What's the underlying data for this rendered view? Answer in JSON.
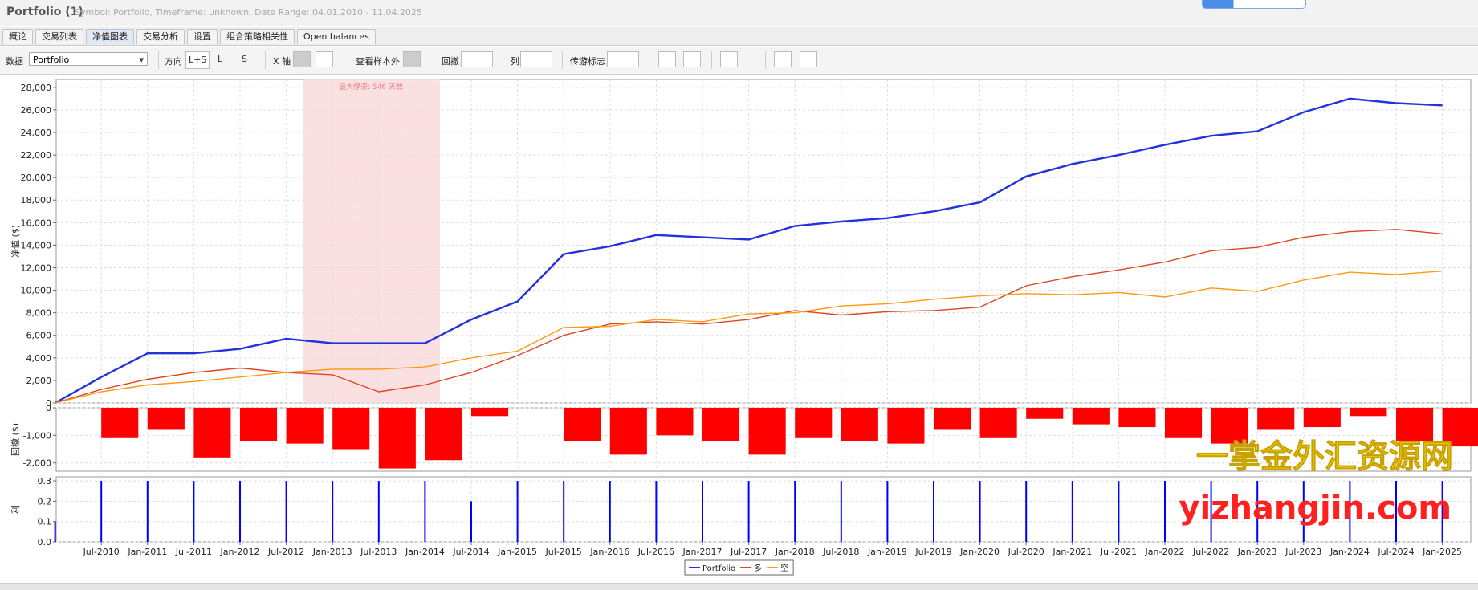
{
  "header": {
    "title": "Portfolio (1)",
    "subtitle": "Symbol: Portfolio, Timeframe: unknown, Date Range: 04.01.2010 - 11.04.2025"
  },
  "tabs": [
    "概论",
    "交易列表",
    "净值图表",
    "交易分析",
    "设置",
    "组合策略相关性",
    "Open balances"
  ],
  "active_tab": 2,
  "toolbar": {
    "data_label": "数据",
    "data_select": "Portfolio",
    "direction_label": "方向",
    "direction_options": [
      "L+S",
      "L",
      "S"
    ],
    "x_axis_label": "X 轴",
    "oos_label": "查看样本外",
    "drawdown_label": "回撤",
    "columns_label": "列",
    "cursor_label": "传游标志"
  },
  "watermark": [
    "一掌金外汇资源网",
    "yizhangjin.com"
  ],
  "chart_data": [
    {
      "type": "line",
      "y_label": "净值 ($)",
      "annotation": "最大停滞: 546 天数",
      "grid": true,
      "categories": [
        null,
        "Jul-2010",
        "Jan-2011",
        "Jul-2011",
        "Jan-2012",
        "Jul-2012",
        "Jan-2013",
        "Jul-2013",
        "Jan-2014",
        "Jul-2014",
        "Jan-2015",
        "Jul-2015",
        "Jan-2016",
        "Jul-2016",
        "Jan-2017",
        "Jul-2017",
        "Jan-2018",
        "Jul-2018",
        "Jan-2019",
        "Jul-2019",
        "Jan-2020",
        "Jul-2020",
        "Jan-2021",
        "Jul-2021",
        "Jan-2022",
        "Jul-2022",
        "Jan-2023",
        "Jul-2023",
        "Jan-2024",
        "Jul-2024",
        "Jan-2025"
      ],
      "series": [
        {
          "name": "Portfolio",
          "color": "#2233dd",
          "values": [
            0,
            2300,
            4400,
            4400,
            4800,
            5700,
            5300,
            5300,
            5300,
            7400,
            9000,
            13200,
            13900,
            14900,
            14700,
            14500,
            15700,
            16100,
            16400,
            17000,
            17800,
            20100,
            21200,
            22000,
            22900,
            23700,
            24100,
            25800,
            27000,
            26600,
            26400
          ]
        },
        {
          "name": "多",
          "color": "#dd4422",
          "values": [
            0,
            1200,
            2100,
            2700,
            3100,
            2700,
            2500,
            1000,
            1600,
            2700,
            4200,
            6000,
            7000,
            7200,
            7000,
            7400,
            8200,
            7800,
            8100,
            8200,
            8500,
            10400,
            11200,
            11800,
            12500,
            13500,
            13800,
            14700,
            15200,
            15400,
            15000
          ]
        },
        {
          "name": "空",
          "color": "#ff9911",
          "values": [
            0,
            1000,
            1600,
            1900,
            2300,
            2700,
            3000,
            3000,
            3200,
            4000,
            4600,
            6700,
            6800,
            7400,
            7200,
            7900,
            8000,
            8600,
            8800,
            9200,
            9500,
            9700,
            9600,
            9800,
            9400,
            10200,
            9900,
            10900,
            11600,
            11400,
            11700
          ]
        }
      ],
      "ylim": [
        0,
        28700
      ],
      "yticks": [
        0,
        {
          "value": 2000,
          "label": "2,000"
        },
        {
          "value": 4000,
          "label": "4,000"
        },
        {
          "value": 6000,
          "label": "6,000"
        },
        {
          "value": 8000,
          "label": "8,000"
        },
        {
          "value": 10000,
          "label": "10,000"
        },
        {
          "value": 12000,
          "label": "12,000"
        },
        {
          "value": 14000,
          "label": "14,000"
        },
        {
          "value": 16000,
          "label": "16,000"
        },
        {
          "value": 18000,
          "label": "18,000"
        },
        {
          "value": 20000,
          "label": "20,000"
        },
        {
          "value": 22000,
          "label": "22,000"
        },
        {
          "value": 24000,
          "label": "24,000"
        },
        {
          "value": 26000,
          "label": "26,000"
        },
        {
          "value": 28000,
          "label": "28,000"
        }
      ]
    },
    {
      "type": "bar",
      "y_label": "回撤 ($)",
      "color": "#ff0000",
      "grid": true,
      "values": [
        0,
        -1100,
        -800,
        -1800,
        -1200,
        -1300,
        -1500,
        -2200,
        -1900,
        -300,
        0,
        -1200,
        -1700,
        -1000,
        -1200,
        -1700,
        -1100,
        -1200,
        -1300,
        -800,
        -1100,
        -400,
        -600,
        -700,
        -1100,
        -1300,
        -800,
        -700,
        -300,
        -1200,
        -1400
      ],
      "ylim": [
        -2300,
        0
      ],
      "yticks": [
        0,
        {
          "value": -1000,
          "label": "-1,000"
        },
        {
          "value": -2000,
          "label": "-2,000"
        }
      ]
    },
    {
      "type": "bar",
      "y_label": "利",
      "color": "#0000ff",
      "grid": true,
      "values": [
        0.1,
        0.3,
        0.3,
        0.3,
        0.3,
        0.3,
        0.3,
        0.3,
        0.3,
        0.2,
        0.3,
        0.3,
        0.3,
        0.3,
        0.3,
        0.3,
        0.3,
        0.3,
        0.3,
        0.3,
        0.3,
        0.3,
        0.3,
        0.3,
        0.3,
        0.3,
        0.3,
        0.3,
        0.3,
        0.3,
        0.3
      ],
      "ylim": [
        0,
        0.32
      ],
      "yticks": [
        {
          "value": 0,
          "label": "0.0"
        },
        0.1,
        0.2,
        0.3
      ]
    }
  ]
}
